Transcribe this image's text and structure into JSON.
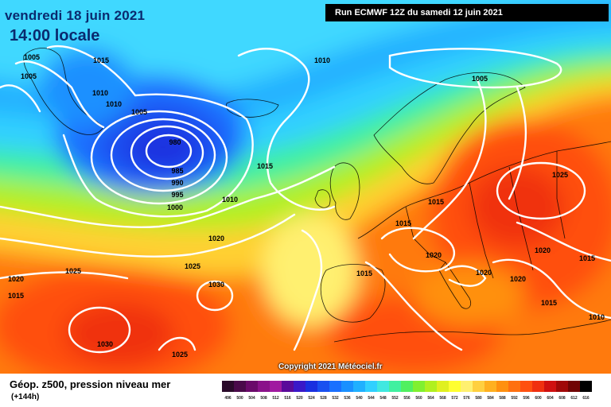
{
  "header": {
    "date_line": "vendredi 18 juin 2021",
    "time_line": "14:00 locale",
    "run_info": "Run ECMWF 12Z du samedi 12 juin 2021"
  },
  "copyright": "Copyright 2021 Météociel.fr",
  "footer": {
    "title": "Géop. z500, pression niveau mer",
    "subtitle": "(+144h)"
  },
  "legend": {
    "values": [
      "496",
      "500",
      "504",
      "508",
      "512",
      "516",
      "520",
      "524",
      "528",
      "532",
      "536",
      "540",
      "544",
      "548",
      "552",
      "556",
      "560",
      "564",
      "568",
      "572",
      "576",
      "580",
      "584",
      "588",
      "592",
      "596",
      "600",
      "604",
      "608",
      "612",
      "616"
    ],
    "colors": [
      "#2a0a2a",
      "#4a0a4a",
      "#6a0a6a",
      "#8a128a",
      "#a01aa0",
      "#5a0a9a",
      "#3a18c8",
      "#1a30e0",
      "#1a50f0",
      "#1a70ff",
      "#1a90ff",
      "#20b0ff",
      "#30d0ff",
      "#40e8e0",
      "#40f0a0",
      "#50f060",
      "#80f030",
      "#b0f020",
      "#e0f020",
      "#ffff30",
      "#fff070",
      "#ffd040",
      "#ffb020",
      "#ff9010",
      "#ff7010",
      "#ff5010",
      "#f03010",
      "#d01010",
      "#a00808",
      "#700404",
      "#000000"
    ]
  },
  "isobars": [
    {
      "label": "1005"
    },
    {
      "label": "1005"
    },
    {
      "label": "1015"
    },
    {
      "label": "1010"
    },
    {
      "label": "1010"
    },
    {
      "label": "1005"
    },
    {
      "label": "980"
    },
    {
      "label": "985"
    },
    {
      "label": "990"
    },
    {
      "label": "995"
    },
    {
      "label": "1000"
    },
    {
      "label": "1015"
    },
    {
      "label": "1010"
    },
    {
      "label": "1010"
    },
    {
      "label": "1005"
    },
    {
      "label": "1025"
    },
    {
      "label": "1015"
    },
    {
      "label": "1015"
    },
    {
      "label": "1020"
    },
    {
      "label": "1020"
    },
    {
      "label": "1020"
    },
    {
      "label": "1015"
    },
    {
      "label": "1020"
    },
    {
      "label": "1020"
    },
    {
      "label": "1015"
    },
    {
      "label": "1015"
    },
    {
      "label": "1010"
    },
    {
      "label": "1025"
    },
    {
      "label": "1025"
    },
    {
      "label": "1030"
    },
    {
      "label": "1020"
    },
    {
      "label": "1015"
    },
    {
      "label": "1030"
    },
    {
      "label": "1025"
    }
  ]
}
